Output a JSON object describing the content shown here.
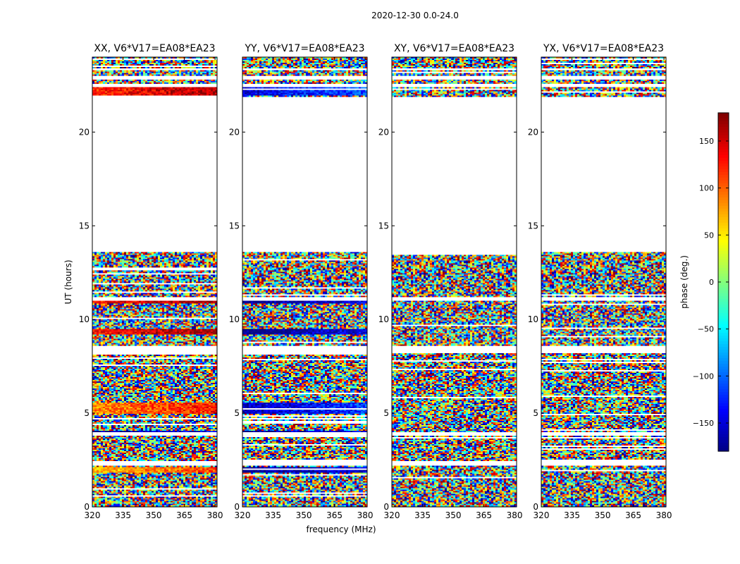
{
  "figure": {
    "suptitle": "2020-12-30 0.0-24.0"
  },
  "chart_data": {
    "type": "heatmap",
    "xlabel": "frequency (MHz)",
    "ylabel": "UT (hours)",
    "xlim": [
      320,
      381
    ],
    "ylim": [
      0,
      24
    ],
    "xticks": [
      "320",
      "335",
      "350",
      "365",
      "380"
    ],
    "yticks": [
      "0",
      "5",
      "10",
      "15",
      "20"
    ],
    "xtick_values": [
      320,
      335,
      350,
      365,
      380
    ],
    "ytick_values": [
      0,
      5,
      10,
      15,
      20
    ],
    "panels": [
      {
        "title": "XX, V6*V17=EA08*EA23",
        "bias_bands": [
          [
            22.0,
            22.4,
            0.8
          ],
          [
            10.9,
            11.05,
            0.85
          ],
          [
            9.2,
            9.5,
            0.85
          ],
          [
            5.0,
            5.6,
            0.6
          ],
          [
            4.0,
            4.1,
            -0.9
          ],
          [
            1.85,
            2.2,
            0.5
          ]
        ]
      },
      {
        "title": "YY, V6*V17=EA08*EA23",
        "bias_bands": [
          [
            22.0,
            22.4,
            -0.7
          ],
          [
            10.9,
            11.05,
            -0.9
          ],
          [
            9.2,
            9.5,
            -0.9
          ],
          [
            5.0,
            5.6,
            -0.75
          ],
          [
            4.0,
            4.1,
            -0.9
          ],
          [
            1.85,
            2.2,
            -0.9
          ]
        ]
      },
      {
        "title": "XY, V6*V17=EA08*EA23",
        "bias_bands": []
      },
      {
        "title": "YX, V6*V17=EA08*EA23",
        "bias_bands": []
      }
    ],
    "data_segments": [
      [
        0.0,
        2.2
      ],
      [
        2.5,
        3.8
      ],
      [
        4.0,
        8.2
      ],
      [
        8.6,
        11.0
      ],
      [
        11.2,
        13.6
      ],
      [
        21.9,
        22.4
      ],
      [
        22.6,
        22.8
      ],
      [
        23.0,
        23.3
      ],
      [
        23.4,
        24.0
      ]
    ],
    "colorbar": {
      "label": "phase (deg.)",
      "range": [
        -180,
        180
      ],
      "ticks": [
        "150",
        "100",
        "50",
        "0",
        "−50",
        "−100",
        "−150"
      ],
      "tick_values": [
        150,
        100,
        50,
        0,
        -50,
        -100,
        -150
      ],
      "colormap": "jet"
    }
  }
}
